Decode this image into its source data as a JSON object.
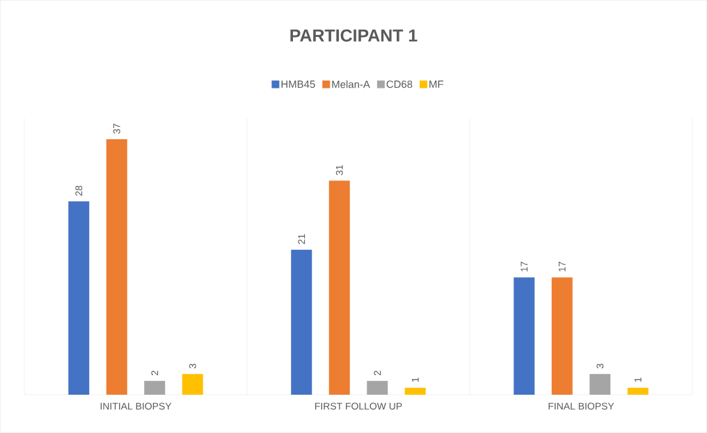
{
  "chart_data": {
    "type": "bar",
    "title": "PARTICIPANT 1",
    "categories": [
      "INITIAL BIOPSY",
      "FIRST FOLLOW UP",
      "FINAL BIOPSY"
    ],
    "series": [
      {
        "name": "HMB45",
        "color": "#4472c4",
        "values": [
          28,
          21,
          17
        ]
      },
      {
        "name": "Melan-A",
        "color": "#ed7d31",
        "values": [
          37,
          31,
          17
        ]
      },
      {
        "name": "CD68",
        "color": "#a5a5a5",
        "values": [
          2,
          2,
          3
        ]
      },
      {
        "name": "MF",
        "color": "#ffc000",
        "values": [
          3,
          1,
          1
        ]
      }
    ],
    "data_labels": true,
    "legend": "top",
    "grid": "x"
  }
}
